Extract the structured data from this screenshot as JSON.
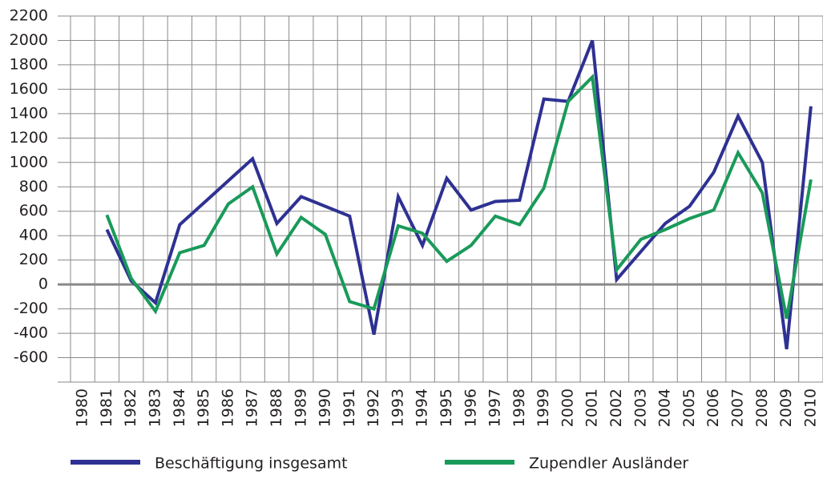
{
  "chart_data": {
    "type": "line",
    "categories": [
      "1980",
      "1981",
      "1982",
      "1983",
      "1984",
      "1985",
      "1986",
      "1987",
      "1988",
      "1989",
      "1990",
      "1991",
      "1992",
      "1993",
      "1994",
      "1995",
      "1996",
      "1997",
      "1998",
      "1999",
      "2000",
      "2001",
      "2002",
      "2003",
      "2004",
      "2005",
      "2006",
      "2007",
      "2008",
      "2009",
      "2010"
    ],
    "series": [
      {
        "name": "Beschäftigung insgesamt",
        "color": "#2e3192",
        "values": [
          null,
          450,
          30,
          -150,
          490,
          670,
          850,
          1030,
          500,
          720,
          640,
          560,
          -410,
          720,
          320,
          870,
          610,
          680,
          690,
          1520,
          1500,
          2000,
          40,
          270,
          500,
          640,
          920,
          1380,
          1000,
          -530,
          1460
        ]
      },
      {
        "name": "Zupendler Ausländer",
        "color": "#1a9a5a",
        "values": [
          null,
          570,
          50,
          -220,
          260,
          320,
          660,
          800,
          250,
          550,
          410,
          -140,
          -200,
          480,
          420,
          190,
          320,
          560,
          490,
          790,
          1500,
          1700,
          120,
          370,
          450,
          540,
          610,
          1080,
          750,
          -280,
          860
        ]
      }
    ],
    "ylim": [
      -800,
      2200
    ],
    "yticks": [
      -600,
      -400,
      -200,
      0,
      200,
      400,
      600,
      800,
      1000,
      1200,
      1400,
      1600,
      1800,
      2000,
      2200
    ],
    "grid": true
  }
}
